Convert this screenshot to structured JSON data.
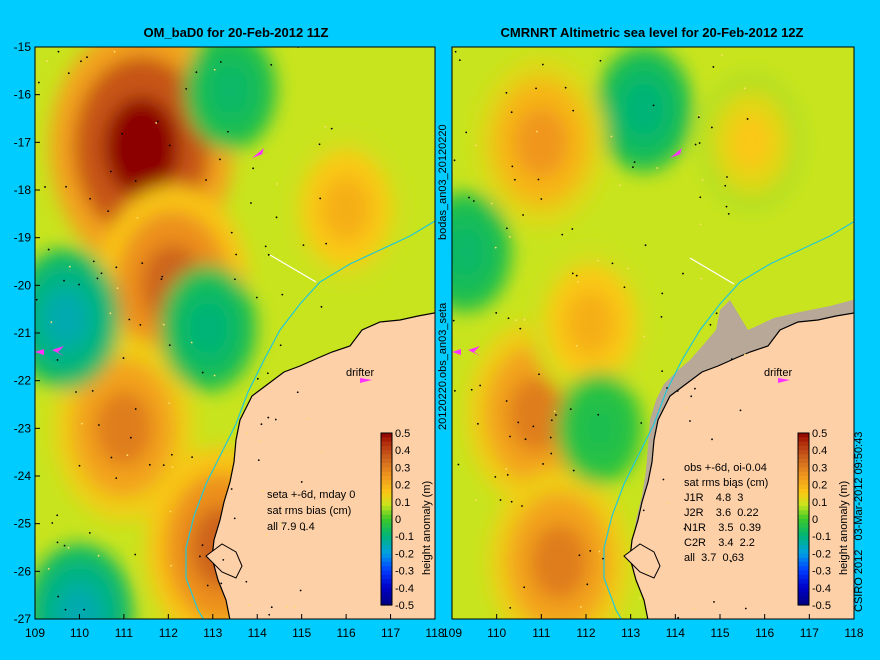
{
  "chart_data": [
    {
      "type": "heatmap",
      "title": "OM_baD0 for 20-Feb-2012 11Z",
      "xlim": [
        109,
        118
      ],
      "ylim": [
        -27,
        -15
      ],
      "x_ticks": [
        "109",
        "110",
        "111",
        "112",
        "113",
        "114",
        "115",
        "116",
        "117",
        "118"
      ],
      "y_ticks": [
        "-15",
        "-16",
        "-17",
        "-18",
        "-19",
        "-20",
        "-21",
        "-22",
        "-23",
        "-24",
        "-25",
        "-26",
        "-27"
      ],
      "side_label": "bodas_an03_20120220",
      "annotation_label": "drifter",
      "stats": [
        "seta +-6d, mday 0",
        "sat rms bias (cm)",
        "all 7.9 0.4"
      ],
      "colorbar": {
        "label": "height anomaly (m)",
        "ticks": [
          "0.5",
          "0.4",
          "0.3",
          "0.2",
          "0.1",
          "0",
          "-0.1",
          "-0.2",
          "-0.3",
          "-0.4",
          "-0.5"
        ],
        "range": [
          -0.5,
          0.5
        ]
      },
      "anomaly_features": [
        {
          "lon": 111.4,
          "lat": -17.1,
          "value": 0.5
        },
        {
          "lon": 112.1,
          "lat": -20.0,
          "value": 0.35
        },
        {
          "lon": 111.0,
          "lat": -23.0,
          "value": 0.3
        },
        {
          "lon": 113.2,
          "lat": -25.5,
          "value": 0.35
        },
        {
          "lon": 109.7,
          "lat": -20.7,
          "value": -0.15
        },
        {
          "lon": 113.4,
          "lat": -15.9,
          "value": -0.08
        },
        {
          "lon": 112.9,
          "lat": -20.9,
          "value": -0.1
        },
        {
          "lon": 110.0,
          "lat": -26.9,
          "value": -0.15
        },
        {
          "lon": 116.0,
          "lat": -18.4,
          "value": 0.2
        }
      ]
    },
    {
      "type": "heatmap",
      "title": "CMRNRT Altimetric sea level  for 20-Feb-2012 12Z",
      "xlim": [
        109,
        118
      ],
      "ylim": [
        -27,
        -15
      ],
      "x_ticks": [
        "109",
        "110",
        "111",
        "112",
        "113",
        "114",
        "115",
        "116",
        "117",
        "118"
      ],
      "y_ticks": [],
      "side_label": "20120220.obs_an03_seta",
      "annotation_label": "drifter",
      "stats": [
        "obs +-6d, oi-0.04",
        "sat rms bias (cm)",
        "J1R    4.8  3",
        "J2R    3.6  0.22",
        "N1R    3.5  0.39",
        "C2R    3.4  2.2",
        "all  3.7  0.63"
      ],
      "colorbar": {
        "label": "height anomaly (m)",
        "ticks": [
          "0.5",
          "0.4",
          "0.3",
          "0.2",
          "0.1",
          "0",
          "-0.1",
          "-0.2",
          "-0.3",
          "-0.4",
          "-0.5"
        ],
        "range": [
          -0.5,
          0.5
        ]
      },
      "credit": "CSIRO 2012   03-Mar-2012 09:50:43",
      "anomaly_features": [
        {
          "lon": 113.3,
          "lat": -16.3,
          "value": -0.1
        },
        {
          "lon": 109.3,
          "lat": -19.3,
          "value": -0.08
        },
        {
          "lon": 111.0,
          "lat": -17.0,
          "value": 0.25
        },
        {
          "lon": 110.9,
          "lat": -22.7,
          "value": 0.3
        },
        {
          "lon": 111.4,
          "lat": -25.8,
          "value": 0.3
        },
        {
          "lon": 112.1,
          "lat": -20.8,
          "value": 0.2
        },
        {
          "lon": 112.3,
          "lat": -23.0,
          "value": -0.05
        },
        {
          "lon": 115.7,
          "lat": -17.0,
          "value": 0.15
        }
      ]
    }
  ]
}
